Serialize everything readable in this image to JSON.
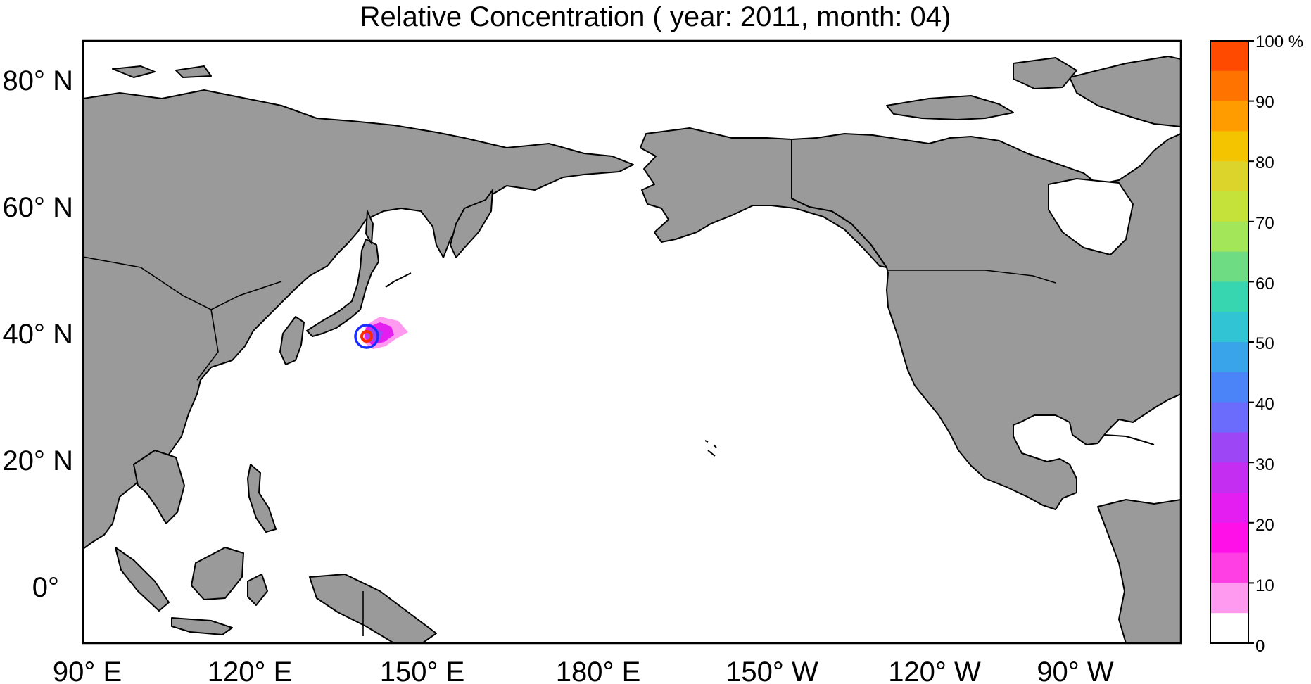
{
  "title": "Relative Concentration ( year: 2011, month: 04)",
  "map": {
    "lon_ticks": [
      "90° E",
      "120° E",
      "150° E",
      "180° E",
      "150° W",
      "120° W",
      "90° W"
    ],
    "lat_ticks": [
      "80° N",
      "60° N",
      "40° N",
      "20° N",
      "0°"
    ],
    "ocean_color": "#ffffff",
    "land_color": "#9a9a9a",
    "coastline_color": "#000000",
    "source_marker": {
      "description_visible": false,
      "outer_ring_color": "#1a2cff",
      "inner_ring_color": "#ff2a00"
    }
  },
  "colorbar": {
    "labels": [
      "100 %",
      "90",
      "80",
      "70",
      "60",
      "50",
      "40",
      "30",
      "20",
      "10",
      "0"
    ],
    "colors_top_to_bottom": [
      "#ff4a00",
      "#ff7300",
      "#ff9d00",
      "#f4c400",
      "#dcd42a",
      "#c4e23a",
      "#a4e65a",
      "#6edc82",
      "#38d6b0",
      "#30c4d4",
      "#3aa4ea",
      "#4a84f8",
      "#6c6cfc",
      "#9c46f6",
      "#c42ef0",
      "#e41ef0",
      "#ff10e8",
      "#ff3ee4",
      "#ff9af0",
      "#ffffff"
    ]
  }
}
